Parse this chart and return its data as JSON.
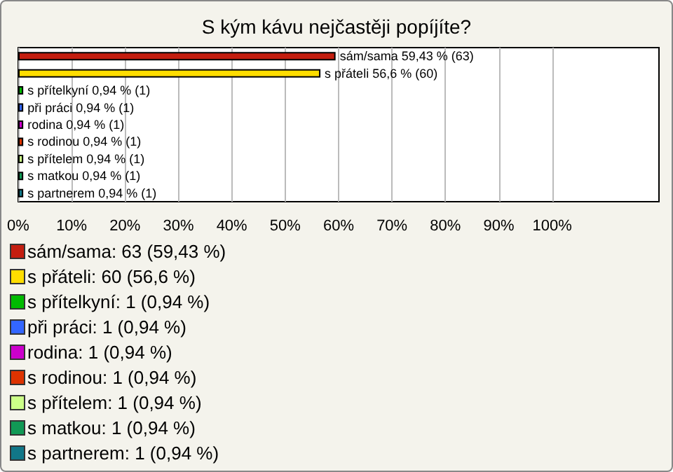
{
  "chart_data": {
    "type": "bar",
    "orientation": "horizontal",
    "title": "S kým kávu nejčastěji popíjíte?",
    "categories": [
      null,
      null,
      null,
      null,
      null,
      null,
      null,
      null,
      null
    ],
    "series": [
      {
        "name": "sám/sama: 63 (59,43 %)",
        "color": "#c41e10",
        "values": [
          59.43,
          null,
          null,
          null,
          null,
          null,
          null,
          null,
          null
        ],
        "value_labels": [
          "sám/sama 59,43 % (63)",
          null,
          null,
          null,
          null,
          null,
          null,
          null,
          null
        ]
      },
      {
        "name": "s přáteli: 60 (56,6 %)",
        "color": "#ffdd00",
        "values": [
          null,
          56.6,
          null,
          null,
          null,
          null,
          null,
          null,
          null
        ],
        "value_labels": [
          null,
          "s přáteli 56,6 % (60)",
          null,
          null,
          null,
          null,
          null,
          null,
          null
        ]
      },
      {
        "name": "s přítelkyní: 1 (0,94 %)",
        "color": "#00bb00",
        "values": [
          null,
          null,
          0.94,
          null,
          null,
          null,
          null,
          null,
          null
        ],
        "value_labels": [
          null,
          null,
          "s přítelkyní 0,94 % (1)",
          null,
          null,
          null,
          null,
          null,
          null
        ]
      },
      {
        "name": "při práci: 1 (0,94 %)",
        "color": "#3366ff",
        "values": [
          null,
          null,
          null,
          0.94,
          null,
          null,
          null,
          null,
          null
        ],
        "value_labels": [
          null,
          null,
          null,
          "při práci 0,94 % (1)",
          null,
          null,
          null,
          null,
          null
        ]
      },
      {
        "name": "rodina: 1 (0,94 %)",
        "color": "#cc00cc",
        "values": [
          null,
          null,
          null,
          null,
          0.94,
          null,
          null,
          null,
          null
        ],
        "value_labels": [
          null,
          null,
          null,
          null,
          "rodina 0,94 % (1)",
          null,
          null,
          null,
          null
        ]
      },
      {
        "name": "s rodinou: 1 (0,94 %)",
        "color": "#dd3300",
        "values": [
          null,
          null,
          null,
          null,
          null,
          0.94,
          null,
          null,
          null
        ],
        "value_labels": [
          null,
          null,
          null,
          null,
          null,
          "s rodinou 0,94 % (1)",
          null,
          null,
          null
        ]
      },
      {
        "name": "s přítelem: 1 (0,94 %)",
        "color": "#ccff88",
        "values": [
          null,
          null,
          null,
          null,
          null,
          null,
          0.94,
          null,
          null
        ],
        "value_labels": [
          null,
          null,
          null,
          null,
          null,
          null,
          "s přítelem 0,94 % (1)",
          null,
          null
        ]
      },
      {
        "name": "s matkou: 1 (0,94 %)",
        "color": "#119955",
        "values": [
          null,
          null,
          null,
          null,
          null,
          null,
          null,
          0.94,
          null
        ],
        "value_labels": [
          null,
          null,
          null,
          null,
          null,
          null,
          null,
          "s matkou 0,94 % (1)",
          null
        ]
      },
      {
        "name": "s partnerem: 1 (0,94 %)",
        "color": "#117788",
        "values": [
          null,
          null,
          null,
          null,
          null,
          null,
          null,
          null,
          0.94
        ],
        "value_labels": [
          null,
          null,
          null,
          null,
          null,
          null,
          null,
          null,
          "s partnerem 0,94 % (1)"
        ]
      }
    ],
    "xlim": [
      0,
      120
    ],
    "xticks": [
      {
        "value": 0,
        "label": "0%"
      },
      {
        "value": 10,
        "label": "10%"
      },
      {
        "value": 20,
        "label": "20%"
      },
      {
        "value": 30,
        "label": "30%"
      },
      {
        "value": 40,
        "label": "40%"
      },
      {
        "value": 50,
        "label": "50%"
      },
      {
        "value": 60,
        "label": "60%"
      },
      {
        "value": 70,
        "label": "70%"
      },
      {
        "value": 80,
        "label": "80%"
      },
      {
        "value": 90,
        "label": "90%"
      },
      {
        "value": 100,
        "label": "100%"
      }
    ],
    "grid": "x",
    "legend": "bottom",
    "tick_labels": "x"
  }
}
